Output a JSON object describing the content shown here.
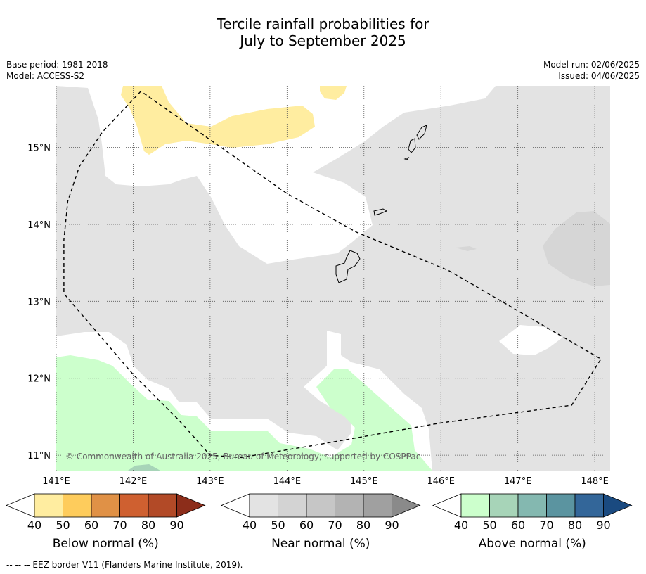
{
  "title_line1": "Tercile rainfall probabilities for",
  "title_line2": "July to September 2025",
  "meta_left": {
    "base_period": "Base period: 1981-2018",
    "model": "Model: ACCESS-S2"
  },
  "meta_right": {
    "model_run": "Model run: 02/06/2025",
    "issued": "Issued: 04/06/2025"
  },
  "map": {
    "lon_range": [
      141.0,
      148.2
    ],
    "lat_range": [
      10.8,
      15.8
    ],
    "lon_ticks": [
      {
        "value": 141,
        "label": "141°E"
      },
      {
        "value": 142,
        "label": "142°E"
      },
      {
        "value": 143,
        "label": "143°E"
      },
      {
        "value": 144,
        "label": "144°E"
      },
      {
        "value": 145,
        "label": "145°E"
      },
      {
        "value": 146,
        "label": "146°E"
      },
      {
        "value": 147,
        "label": "147°E"
      },
      {
        "value": 148,
        "label": "148°E"
      }
    ],
    "lat_ticks": [
      {
        "value": 15,
        "label": "15°N"
      },
      {
        "value": 14,
        "label": "14°N"
      },
      {
        "value": 13,
        "label": "13°N"
      },
      {
        "value": 12,
        "label": "12°N"
      },
      {
        "value": 11,
        "label": "11°N"
      }
    ],
    "copyright": "© Commonwealth of Australia 2025, Bureau of Meteorology, supported by COSPPac",
    "colors": {
      "near_40": "#e3e3e3",
      "below_40": "#ffeda0",
      "above_40": "#ccffcc",
      "above_50": "#a7d4b8",
      "coast": "#000000"
    },
    "eez_border_lonlat": [
      [
        142.1,
        15.73
      ],
      [
        141.6,
        15.2
      ],
      [
        141.3,
        14.75
      ],
      [
        141.15,
        14.3
      ],
      [
        141.1,
        13.8
      ],
      [
        141.1,
        13.1
      ],
      [
        142.0,
        12.05
      ],
      [
        142.6,
        11.45
      ],
      [
        143.0,
        11.0
      ],
      [
        143.4,
        10.97
      ],
      [
        144.3,
        11.12
      ],
      [
        146.0,
        11.42
      ],
      [
        147.7,
        11.65
      ],
      [
        148.08,
        12.25
      ],
      [
        146.1,
        13.4
      ],
      [
        144.9,
        13.9
      ],
      [
        144.0,
        14.4
      ],
      [
        142.1,
        15.73
      ]
    ]
  },
  "colorbars": [
    {
      "label": "Below normal (%)",
      "ticks": [
        "40",
        "50",
        "60",
        "70",
        "80",
        "90"
      ],
      "colors": [
        "#ffffff",
        "#ffeda0",
        "#fecc5c",
        "#e09146",
        "#cf6030",
        "#b24a27",
        "#8c2d1a"
      ]
    },
    {
      "label": "Near normal (%)",
      "ticks": [
        "40",
        "50",
        "60",
        "70",
        "80",
        "90"
      ],
      "colors": [
        "#ffffff",
        "#e3e3e3",
        "#d3d3d3",
        "#c6c6c6",
        "#b3b3b3",
        "#a0a0a0",
        "#8a8a8a"
      ]
    },
    {
      "label": "Above normal (%)",
      "ticks": [
        "40",
        "50",
        "60",
        "70",
        "80",
        "90"
      ],
      "colors": [
        "#ffffff",
        "#ccffcc",
        "#a7d4b8",
        "#84b8b0",
        "#5b94a0",
        "#336699",
        "#1a4a80"
      ]
    }
  ],
  "footer": "--  --  -- EEZ border V11 (Flanders Marine Institute, 2019)."
}
